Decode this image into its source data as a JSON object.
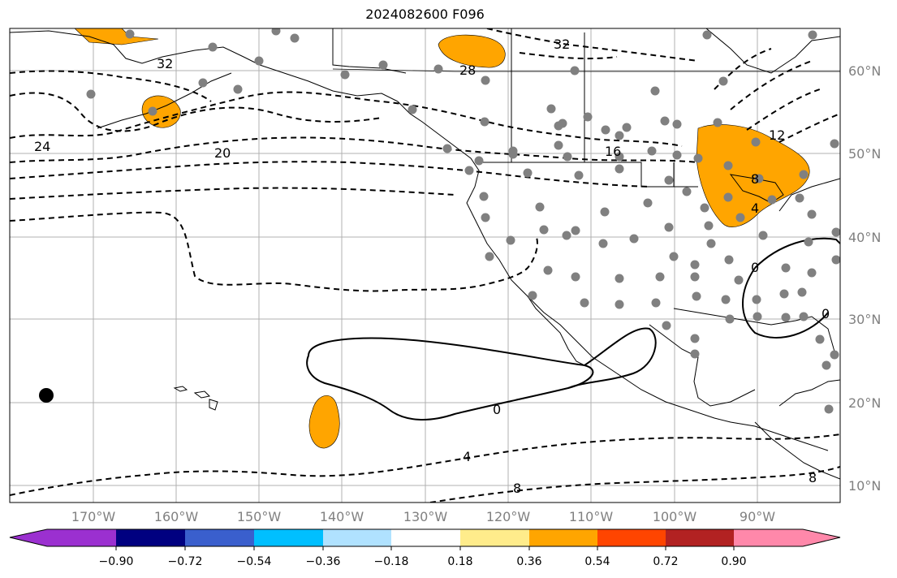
{
  "title": "2024082600 F096",
  "map": {
    "lon_labels": [
      "170°W",
      "160°W",
      "150°W",
      "140°W",
      "130°W",
      "120°W",
      "110°W",
      "100°W",
      "90°W"
    ],
    "lat_labels": [
      "60°N",
      "50°N",
      "40°N",
      "30°N",
      "20°N",
      "10°N"
    ],
    "contour_labels": [
      "32",
      "32",
      "28",
      "24",
      "20",
      "16",
      "12",
      "8",
      "4",
      "0",
      "0",
      "0",
      "4",
      "8",
      "8"
    ],
    "fill_color": "#ffa500",
    "station_color": "#808080",
    "grid_color": "#b0b0b0"
  },
  "colorbar": {
    "ticks": [
      "−0.90",
      "−0.72",
      "−0.54",
      "−0.36",
      "−0.18",
      "0.18",
      "0.36",
      "0.54",
      "0.72",
      "0.90"
    ],
    "colors": [
      "#9b30d0",
      "#000080",
      "#3a5fcd",
      "#00bfff",
      "#b0e2ff",
      "#ffffff",
      "#ffec8b",
      "#ffa500",
      "#ff4500",
      "#b22222",
      "#ff88aa"
    ]
  }
}
